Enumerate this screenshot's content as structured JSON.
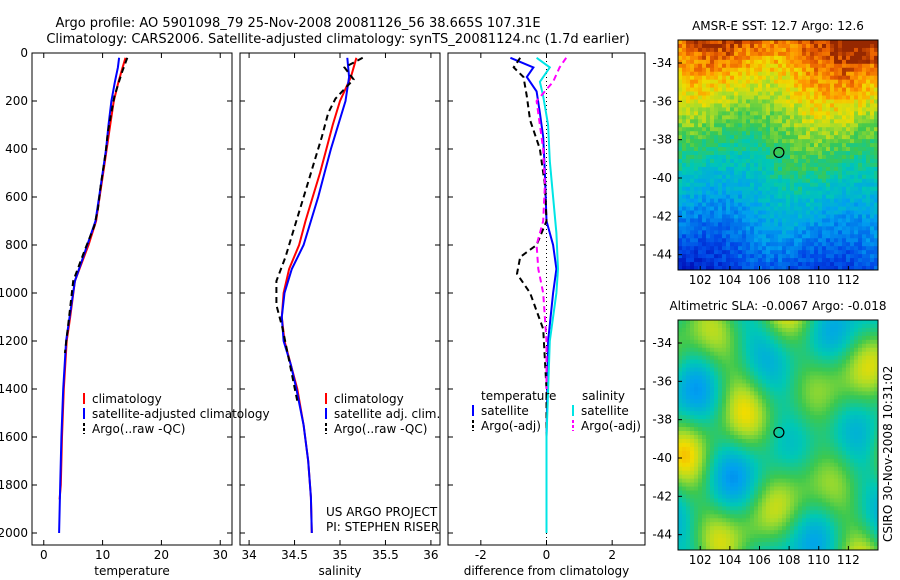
{
  "header": {
    "line1": "Argo profile: AO 5901098_79 25-Nov-2008 20081126_56 38.665S 107.31E",
    "line2": "Climatology: CARS2006. Satellite-adjusted climatology: synTS_20081124.nc (1.7d earlier)"
  },
  "side_text": "CSIRO 30-Nov-2008 10:31:02",
  "credits": [
    "US ARGO PROJECT",
    "PI: STEPHEN RISER"
  ],
  "colors": {
    "climatology": "#ff0000",
    "satellite": "#0000ff",
    "argo": "#000000",
    "sat_diff_sal": "#00e5e5",
    "argo_diff_sal": "#ff00ff"
  },
  "chart_data": [
    {
      "type": "line",
      "xlabel": "temperature",
      "xlim": [
        -2,
        32
      ],
      "ylim": [
        2050,
        0
      ],
      "xticks": [
        "0",
        "10",
        "20",
        "30"
      ],
      "xtick_vals": [
        0,
        10,
        20,
        30
      ],
      "yticks": [
        "0",
        "200",
        "400",
        "600",
        "800",
        "1000",
        "1200",
        "1400",
        "1600",
        "1800",
        "2000"
      ],
      "ytick_vals": [
        0,
        200,
        400,
        600,
        800,
        1000,
        1200,
        1400,
        1600,
        1800,
        2000
      ],
      "legend": [
        "climatology",
        "satellite-adjusted climatology",
        "Argo(..raw -QC)"
      ],
      "series": [
        {
          "name": "climatology",
          "style": "solid",
          "color": "#ff0000",
          "points": [
            [
              13.9,
              20
            ],
            [
              13.4,
              60
            ],
            [
              12.7,
              120
            ],
            [
              11.9,
              200
            ],
            [
              11.3,
              300
            ],
            [
              10.7,
              400
            ],
            [
              10.1,
              500
            ],
            [
              9.5,
              600
            ],
            [
              8.9,
              700
            ],
            [
              7.6,
              800
            ],
            [
              5.3,
              950
            ],
            [
              4.5,
              1100
            ],
            [
              3.9,
              1200
            ],
            [
              3.4,
              1400
            ],
            [
              3.1,
              1600
            ],
            [
              2.9,
              1800
            ],
            [
              2.7,
              1860
            ]
          ]
        },
        {
          "name": "satellite-adjusted climatology",
          "style": "solid",
          "color": "#0000ff",
          "points": [
            [
              12.8,
              20
            ],
            [
              12.6,
              60
            ],
            [
              12.1,
              120
            ],
            [
              11.5,
              200
            ],
            [
              11.0,
              300
            ],
            [
              10.6,
              400
            ],
            [
              10.0,
              500
            ],
            [
              9.4,
              600
            ],
            [
              8.8,
              700
            ],
            [
              7.4,
              800
            ],
            [
              5.3,
              950
            ],
            [
              4.4,
              1100
            ],
            [
              3.8,
              1200
            ],
            [
              3.3,
              1400
            ],
            [
              3.0,
              1600
            ],
            [
              2.8,
              1800
            ],
            [
              2.6,
              2000
            ]
          ]
        },
        {
          "name": "Argo(..raw -QC)",
          "style": "dashed",
          "color": "#000000",
          "points": [
            [
              14.2,
              20
            ],
            [
              13.3,
              80
            ],
            [
              12.0,
              180
            ],
            [
              11.4,
              260
            ],
            [
              10.9,
              330
            ],
            [
              10.5,
              420
            ],
            [
              9.7,
              550
            ],
            [
              9.2,
              650
            ],
            [
              8.6,
              720
            ],
            [
              7.0,
              820
            ],
            [
              5.0,
              950
            ],
            [
              4.3,
              1100
            ],
            [
              3.6,
              1250
            ]
          ]
        }
      ]
    },
    {
      "type": "line",
      "xlabel": "salinity",
      "xlim": [
        33.9,
        36.1
      ],
      "ylim": [
        2050,
        0
      ],
      "xticks": [
        "34",
        "34.5",
        "35",
        "35.5",
        "36"
      ],
      "xtick_vals": [
        34,
        34.5,
        35,
        35.5,
        36
      ],
      "legend": [
        "climatology",
        "satellite adj. clim.",
        "Argo(..raw -QC)"
      ],
      "series": [
        {
          "name": "climatology",
          "style": "solid",
          "color": "#ff0000",
          "points": [
            [
              35.18,
              20
            ],
            [
              35.12,
              100
            ],
            [
              35.0,
              200
            ],
            [
              34.92,
              300
            ],
            [
              34.85,
              400
            ],
            [
              34.78,
              500
            ],
            [
              34.7,
              600
            ],
            [
              34.62,
              700
            ],
            [
              34.55,
              800
            ],
            [
              34.44,
              900
            ],
            [
              34.38,
              1000
            ],
            [
              34.36,
              1100
            ],
            [
              34.39,
              1200
            ],
            [
              34.46,
              1300
            ],
            [
              34.53,
              1400
            ],
            [
              34.6,
              1550
            ],
            [
              34.65,
              1700
            ],
            [
              34.68,
              1850
            ],
            [
              34.69,
              2000
            ]
          ]
        },
        {
          "name": "satellite adj. clim.",
          "style": "solid",
          "color": "#0000ff",
          "points": [
            [
              35.08,
              20
            ],
            [
              35.1,
              100
            ],
            [
              35.06,
              200
            ],
            [
              34.98,
              300
            ],
            [
              34.9,
              400
            ],
            [
              34.83,
              500
            ],
            [
              34.76,
              600
            ],
            [
              34.68,
              700
            ],
            [
              34.6,
              800
            ],
            [
              34.47,
              900
            ],
            [
              34.39,
              1000
            ],
            [
              34.36,
              1100
            ],
            [
              34.38,
              1200
            ],
            [
              34.46,
              1300
            ],
            [
              34.52,
              1400
            ],
            [
              34.6,
              1550
            ],
            [
              34.65,
              1700
            ],
            [
              34.68,
              1850
            ],
            [
              34.69,
              2000
            ]
          ]
        },
        {
          "name": "Argo(..raw -QC)",
          "style": "dashed",
          "color": "#000000",
          "points": [
            [
              35.25,
              20
            ],
            [
              35.05,
              60
            ],
            [
              35.15,
              110
            ],
            [
              34.95,
              190
            ],
            [
              34.87,
              250
            ],
            [
              34.8,
              350
            ],
            [
              34.72,
              450
            ],
            [
              34.64,
              550
            ],
            [
              34.56,
              650
            ],
            [
              34.48,
              750
            ],
            [
              34.4,
              850
            ],
            [
              34.3,
              950
            ],
            [
              34.3,
              1050
            ],
            [
              34.37,
              1150
            ],
            [
              34.45,
              1300
            ],
            [
              34.53,
              1450
            ]
          ]
        }
      ]
    },
    {
      "type": "line",
      "xlabel": "difference from climatology",
      "xlim": [
        -3,
        3
      ],
      "ylim": [
        2050,
        0
      ],
      "xticks": [
        "-2",
        "0",
        "2"
      ],
      "xtick_vals": [
        -2,
        0,
        2
      ],
      "legend_groups": [
        {
          "title": "temperature",
          "entries": [
            "satellite",
            "Argo(-adj)"
          ]
        },
        {
          "title": "salinity",
          "entries": [
            "satellite",
            "Argo(-adj)"
          ]
        }
      ],
      "series": [
        {
          "name": "satellite",
          "group": "temperature",
          "style": "solid",
          "color": "#0000ff",
          "points": [
            [
              -1.1,
              20
            ],
            [
              -0.4,
              60
            ],
            [
              -0.6,
              100
            ],
            [
              -0.3,
              160
            ],
            [
              -0.2,
              250
            ],
            [
              -0.1,
              350
            ],
            [
              -0.05,
              500
            ],
            [
              0.0,
              700
            ],
            [
              0.2,
              800
            ],
            [
              0.3,
              900
            ],
            [
              0.2,
              1000
            ],
            [
              0.05,
              1200
            ],
            [
              0.0,
              1600
            ],
            [
              0.0,
              2000
            ]
          ]
        },
        {
          "name": "Argo(-adj)",
          "group": "temperature",
          "style": "dashed",
          "color": "#000000",
          "points": [
            [
              -0.8,
              20
            ],
            [
              -1.0,
              60
            ],
            [
              -0.7,
              100
            ],
            [
              -0.6,
              180
            ],
            [
              -0.5,
              280
            ],
            [
              -0.2,
              400
            ],
            [
              -0.05,
              550
            ],
            [
              0.0,
              700
            ],
            [
              -0.3,
              800
            ],
            [
              -0.8,
              850
            ],
            [
              -0.9,
              920
            ],
            [
              -0.5,
              1000
            ],
            [
              -0.1,
              1150
            ],
            [
              0.0,
              1400
            ],
            [
              0.0,
              2000
            ]
          ]
        },
        {
          "name": "satellite",
          "group": "salinity",
          "style": "solid",
          "color": "#00e5e5",
          "points": [
            [
              -0.3,
              20
            ],
            [
              0.1,
              60
            ],
            [
              -0.2,
              120
            ],
            [
              -0.1,
              180
            ],
            [
              0.05,
              300
            ],
            [
              0.1,
              450
            ],
            [
              0.2,
              600
            ],
            [
              0.3,
              750
            ],
            [
              0.35,
              900
            ],
            [
              0.3,
              1000
            ],
            [
              0.1,
              1200
            ],
            [
              0.0,
              1600
            ],
            [
              0.0,
              2000
            ]
          ]
        },
        {
          "name": "Argo(-adj)",
          "group": "salinity",
          "style": "dashed",
          "color": "#ff00ff",
          "points": [
            [
              0.6,
              20
            ],
            [
              0.4,
              60
            ],
            [
              0.2,
              120
            ],
            [
              -0.3,
              200
            ],
            [
              -0.2,
              300
            ],
            [
              -0.1,
              400
            ],
            [
              -0.05,
              550
            ],
            [
              -0.1,
              700
            ],
            [
              -0.3,
              800
            ],
            [
              -0.25,
              900
            ],
            [
              -0.1,
              1000
            ],
            [
              0.0,
              1200
            ],
            [
              0.0,
              1400
            ]
          ]
        }
      ]
    },
    {
      "type": "heatmap",
      "title": "AMSR-E SST: 12.7  Argo: 12.6",
      "xlim": [
        100.5,
        114
      ],
      "ylim": [
        -44.8,
        -32.8
      ],
      "xticks": [
        "102",
        "104",
        "106",
        "108",
        "110",
        "112"
      ],
      "xtick_vals": [
        102,
        104,
        106,
        108,
        110,
        112
      ],
      "yticks": [
        "-34",
        "-36",
        "-38",
        "-40",
        "-42",
        "-44"
      ],
      "ytick_vals": [
        -34,
        -36,
        -38,
        -40,
        -42,
        -44
      ],
      "marker": {
        "lon": 107.31,
        "lat": -38.665
      }
    },
    {
      "type": "heatmap",
      "title": "Altimetric SLA: -0.0067  Argo: -0.018",
      "xlim": [
        100.5,
        114
      ],
      "ylim": [
        -44.8,
        -32.8
      ],
      "xticks": [
        "102",
        "104",
        "106",
        "108",
        "110",
        "112"
      ],
      "xtick_vals": [
        102,
        104,
        106,
        108,
        110,
        112
      ],
      "yticks": [
        "-34",
        "-36",
        "-38",
        "-40",
        "-42",
        "-44"
      ],
      "ytick_vals": [
        -34,
        -36,
        -38,
        -40,
        -42,
        -44
      ],
      "marker": {
        "lon": 107.31,
        "lat": -38.665
      }
    }
  ]
}
